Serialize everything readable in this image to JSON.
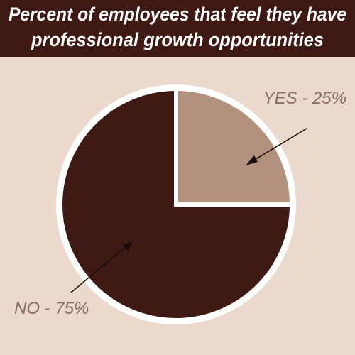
{
  "chart_data": {
    "type": "pie",
    "title": [
      "Percent of employees that feel they have",
      "professional growth opportunities"
    ],
    "values": [
      25,
      75
    ],
    "value_labels": [
      "YES - 25%",
      "NO - 75%"
    ],
    "colors": [
      "#b3917f",
      "#3f1a14"
    ]
  }
}
